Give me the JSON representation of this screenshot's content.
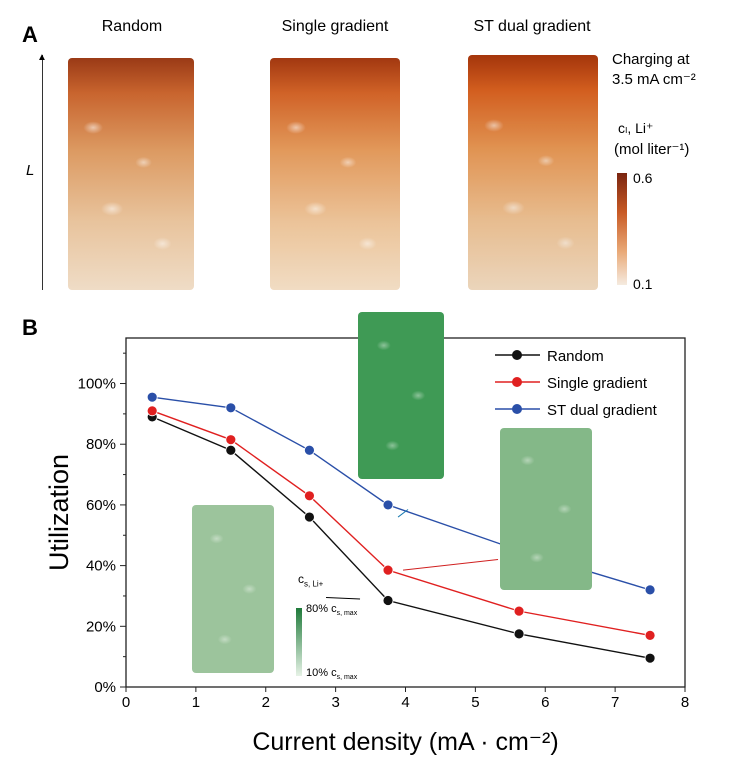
{
  "panel_a": {
    "letter": "A",
    "structures": [
      {
        "title": "Random"
      },
      {
        "title": "Single gradient"
      },
      {
        "title": "ST dual gradient"
      }
    ],
    "axis_label": "L",
    "condition_line1": "Charging at",
    "condition_line2": "3.5 mA cm⁻²",
    "colorbar": {
      "label": "cₗ, Li⁺",
      "unit": "(mol liter⁻¹)",
      "max": "0.6",
      "min": "0.1",
      "color_max": "#7a2510",
      "color_min": "#f5ebe0"
    }
  },
  "panel_b": {
    "letter": "B",
    "inset_colorbar": {
      "label": "c s, Li+",
      "max": "80% c s, max",
      "min": "10% c s, max",
      "color_max": "#1f7a3a",
      "color_min": "#e6f2e6"
    }
  },
  "chart_data": {
    "type": "line",
    "xlabel": "Current density (mA · cm⁻²)",
    "ylabel": "Utilization",
    "xlim": [
      0,
      8
    ],
    "ylim": [
      0,
      115
    ],
    "xticks": [
      "0",
      "1",
      "2",
      "3",
      "4",
      "5",
      "6",
      "7",
      "8"
    ],
    "yticks": [
      "0%",
      "20%",
      "40%",
      "60%",
      "80%",
      "100%"
    ],
    "legend_position": "top-right",
    "grid": false,
    "x": [
      0.375,
      1.5,
      2.625,
      3.75,
      5.625,
      7.5
    ],
    "series": [
      {
        "name": "Random",
        "color": "#111111",
        "values": [
          89,
          78,
          56,
          28.5,
          17.5,
          9.5
        ]
      },
      {
        "name": "Single gradient",
        "color": "#e02020",
        "values": [
          91,
          81.5,
          63,
          38.5,
          25,
          17
        ]
      },
      {
        "name": "ST dual gradient",
        "color": "#2a4fa8",
        "values": [
          95.5,
          92,
          78,
          60,
          45,
          32
        ]
      }
    ]
  }
}
